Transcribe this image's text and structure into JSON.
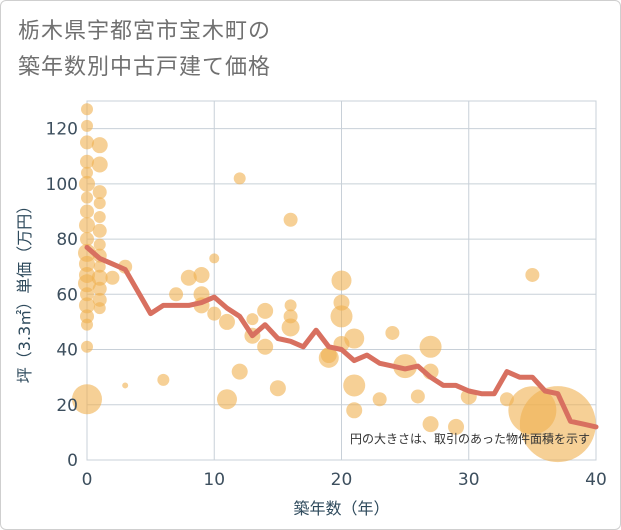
{
  "chart_data": {
    "type": "scatter",
    "title_lines": [
      "栃木県宇都宮市宝木町の",
      "築年数別中古戸建て価格"
    ],
    "xlabel": "築年数（年）",
    "ylabel": "坪（3.3㎡）単価（万円）",
    "xlim": [
      0,
      40
    ],
    "ylim": [
      0,
      130
    ],
    "xticks": [
      0,
      10,
      20,
      30,
      40
    ],
    "yticks": [
      0,
      20,
      40,
      60,
      80,
      100,
      120
    ],
    "grid": true,
    "annotation": "円の大きさは、取引のあった物件面積を示す",
    "colors": {
      "bubble": "#f0b050",
      "line": "#d87060",
      "grid": "#c8d0d8"
    },
    "bubbles": [
      {
        "x": 0,
        "y": 127,
        "r": 6
      },
      {
        "x": 0,
        "y": 121,
        "r": 6
      },
      {
        "x": 0,
        "y": 115,
        "r": 7
      },
      {
        "x": 0,
        "y": 108,
        "r": 7
      },
      {
        "x": 0,
        "y": 104,
        "r": 6
      },
      {
        "x": 0,
        "y": 100,
        "r": 8
      },
      {
        "x": 0,
        "y": 95,
        "r": 6
      },
      {
        "x": 0,
        "y": 90,
        "r": 7
      },
      {
        "x": 0,
        "y": 85,
        "r": 8
      },
      {
        "x": 0,
        "y": 80,
        "r": 7
      },
      {
        "x": 0,
        "y": 75,
        "r": 9
      },
      {
        "x": 0,
        "y": 71,
        "r": 8
      },
      {
        "x": 0,
        "y": 67,
        "r": 8
      },
      {
        "x": 0,
        "y": 64,
        "r": 9
      },
      {
        "x": 0,
        "y": 60,
        "r": 7
      },
      {
        "x": 0,
        "y": 56,
        "r": 8
      },
      {
        "x": 0,
        "y": 52,
        "r": 7
      },
      {
        "x": 0,
        "y": 49,
        "r": 6
      },
      {
        "x": 0,
        "y": 41,
        "r": 6
      },
      {
        "x": 0,
        "y": 22,
        "r": 15
      },
      {
        "x": 1,
        "y": 114,
        "r": 8
      },
      {
        "x": 1,
        "y": 107,
        "r": 8
      },
      {
        "x": 1,
        "y": 97,
        "r": 7
      },
      {
        "x": 1,
        "y": 93,
        "r": 6
      },
      {
        "x": 1,
        "y": 88,
        "r": 6
      },
      {
        "x": 1,
        "y": 83,
        "r": 7
      },
      {
        "x": 1,
        "y": 78,
        "r": 6
      },
      {
        "x": 1,
        "y": 74,
        "r": 7
      },
      {
        "x": 1,
        "y": 70,
        "r": 6
      },
      {
        "x": 1,
        "y": 66,
        "r": 8
      },
      {
        "x": 1,
        "y": 62,
        "r": 7
      },
      {
        "x": 1,
        "y": 58,
        "r": 7
      },
      {
        "x": 1,
        "y": 55,
        "r": 6
      },
      {
        "x": 2,
        "y": 66,
        "r": 7
      },
      {
        "x": 3,
        "y": 70,
        "r": 7
      },
      {
        "x": 3,
        "y": 27,
        "r": 3
      },
      {
        "x": 6,
        "y": 29,
        "r": 6
      },
      {
        "x": 7,
        "y": 60,
        "r": 7
      },
      {
        "x": 8,
        "y": 66,
        "r": 8
      },
      {
        "x": 9,
        "y": 67,
        "r": 8
      },
      {
        "x": 9,
        "y": 60,
        "r": 8
      },
      {
        "x": 9,
        "y": 56,
        "r": 8
      },
      {
        "x": 10,
        "y": 73,
        "r": 5
      },
      {
        "x": 10,
        "y": 53,
        "r": 7
      },
      {
        "x": 11,
        "y": 50,
        "r": 8
      },
      {
        "x": 11,
        "y": 22,
        "r": 10
      },
      {
        "x": 12,
        "y": 102,
        "r": 6
      },
      {
        "x": 12,
        "y": 32,
        "r": 8
      },
      {
        "x": 13,
        "y": 51,
        "r": 6
      },
      {
        "x": 13,
        "y": 45,
        "r": 8
      },
      {
        "x": 14,
        "y": 54,
        "r": 8
      },
      {
        "x": 14,
        "y": 41,
        "r": 8
      },
      {
        "x": 15,
        "y": 26,
        "r": 8
      },
      {
        "x": 16,
        "y": 87,
        "r": 7
      },
      {
        "x": 16,
        "y": 56,
        "r": 6
      },
      {
        "x": 16,
        "y": 52,
        "r": 7
      },
      {
        "x": 16,
        "y": 48,
        "r": 9
      },
      {
        "x": 19,
        "y": 38,
        "r": 8
      },
      {
        "x": 19,
        "y": 37,
        "r": 10
      },
      {
        "x": 20,
        "y": 65,
        "r": 10
      },
      {
        "x": 20,
        "y": 57,
        "r": 8
      },
      {
        "x": 20,
        "y": 52,
        "r": 11
      },
      {
        "x": 20,
        "y": 42,
        "r": 8
      },
      {
        "x": 21,
        "y": 44,
        "r": 10
      },
      {
        "x": 21,
        "y": 27,
        "r": 11
      },
      {
        "x": 21,
        "y": 18,
        "r": 8
      },
      {
        "x": 23,
        "y": 22,
        "r": 7
      },
      {
        "x": 24,
        "y": 46,
        "r": 7
      },
      {
        "x": 25,
        "y": 34,
        "r": 12
      },
      {
        "x": 26,
        "y": 23,
        "r": 7
      },
      {
        "x": 27,
        "y": 41,
        "r": 11
      },
      {
        "x": 27,
        "y": 32,
        "r": 8
      },
      {
        "x": 27,
        "y": 13,
        "r": 8
      },
      {
        "x": 29,
        "y": 12,
        "r": 8
      },
      {
        "x": 30,
        "y": 23,
        "r": 8
      },
      {
        "x": 33,
        "y": 22,
        "r": 7
      },
      {
        "x": 35,
        "y": 67,
        "r": 7
      },
      {
        "x": 35,
        "y": 18,
        "r": 24
      },
      {
        "x": 37,
        "y": 13,
        "r": 38
      }
    ],
    "line": {
      "x": [
        0,
        1,
        2,
        3,
        4,
        5,
        6,
        7,
        8,
        9,
        10,
        11,
        12,
        13,
        14,
        15,
        16,
        17,
        18,
        19,
        20,
        21,
        22,
        23,
        24,
        25,
        26,
        27,
        28,
        29,
        30,
        31,
        32,
        33,
        34,
        35,
        36,
        37,
        38,
        39,
        40
      ],
      "y": [
        77,
        73,
        71,
        69,
        61,
        53,
        56,
        56,
        56,
        57,
        59,
        55,
        52,
        45,
        49,
        44,
        43,
        41,
        47,
        41,
        40,
        36,
        38,
        35,
        34,
        33,
        34,
        30,
        27,
        27,
        25,
        24,
        24,
        32,
        30,
        30,
        25,
        24,
        14,
        13,
        12
      ]
    }
  }
}
